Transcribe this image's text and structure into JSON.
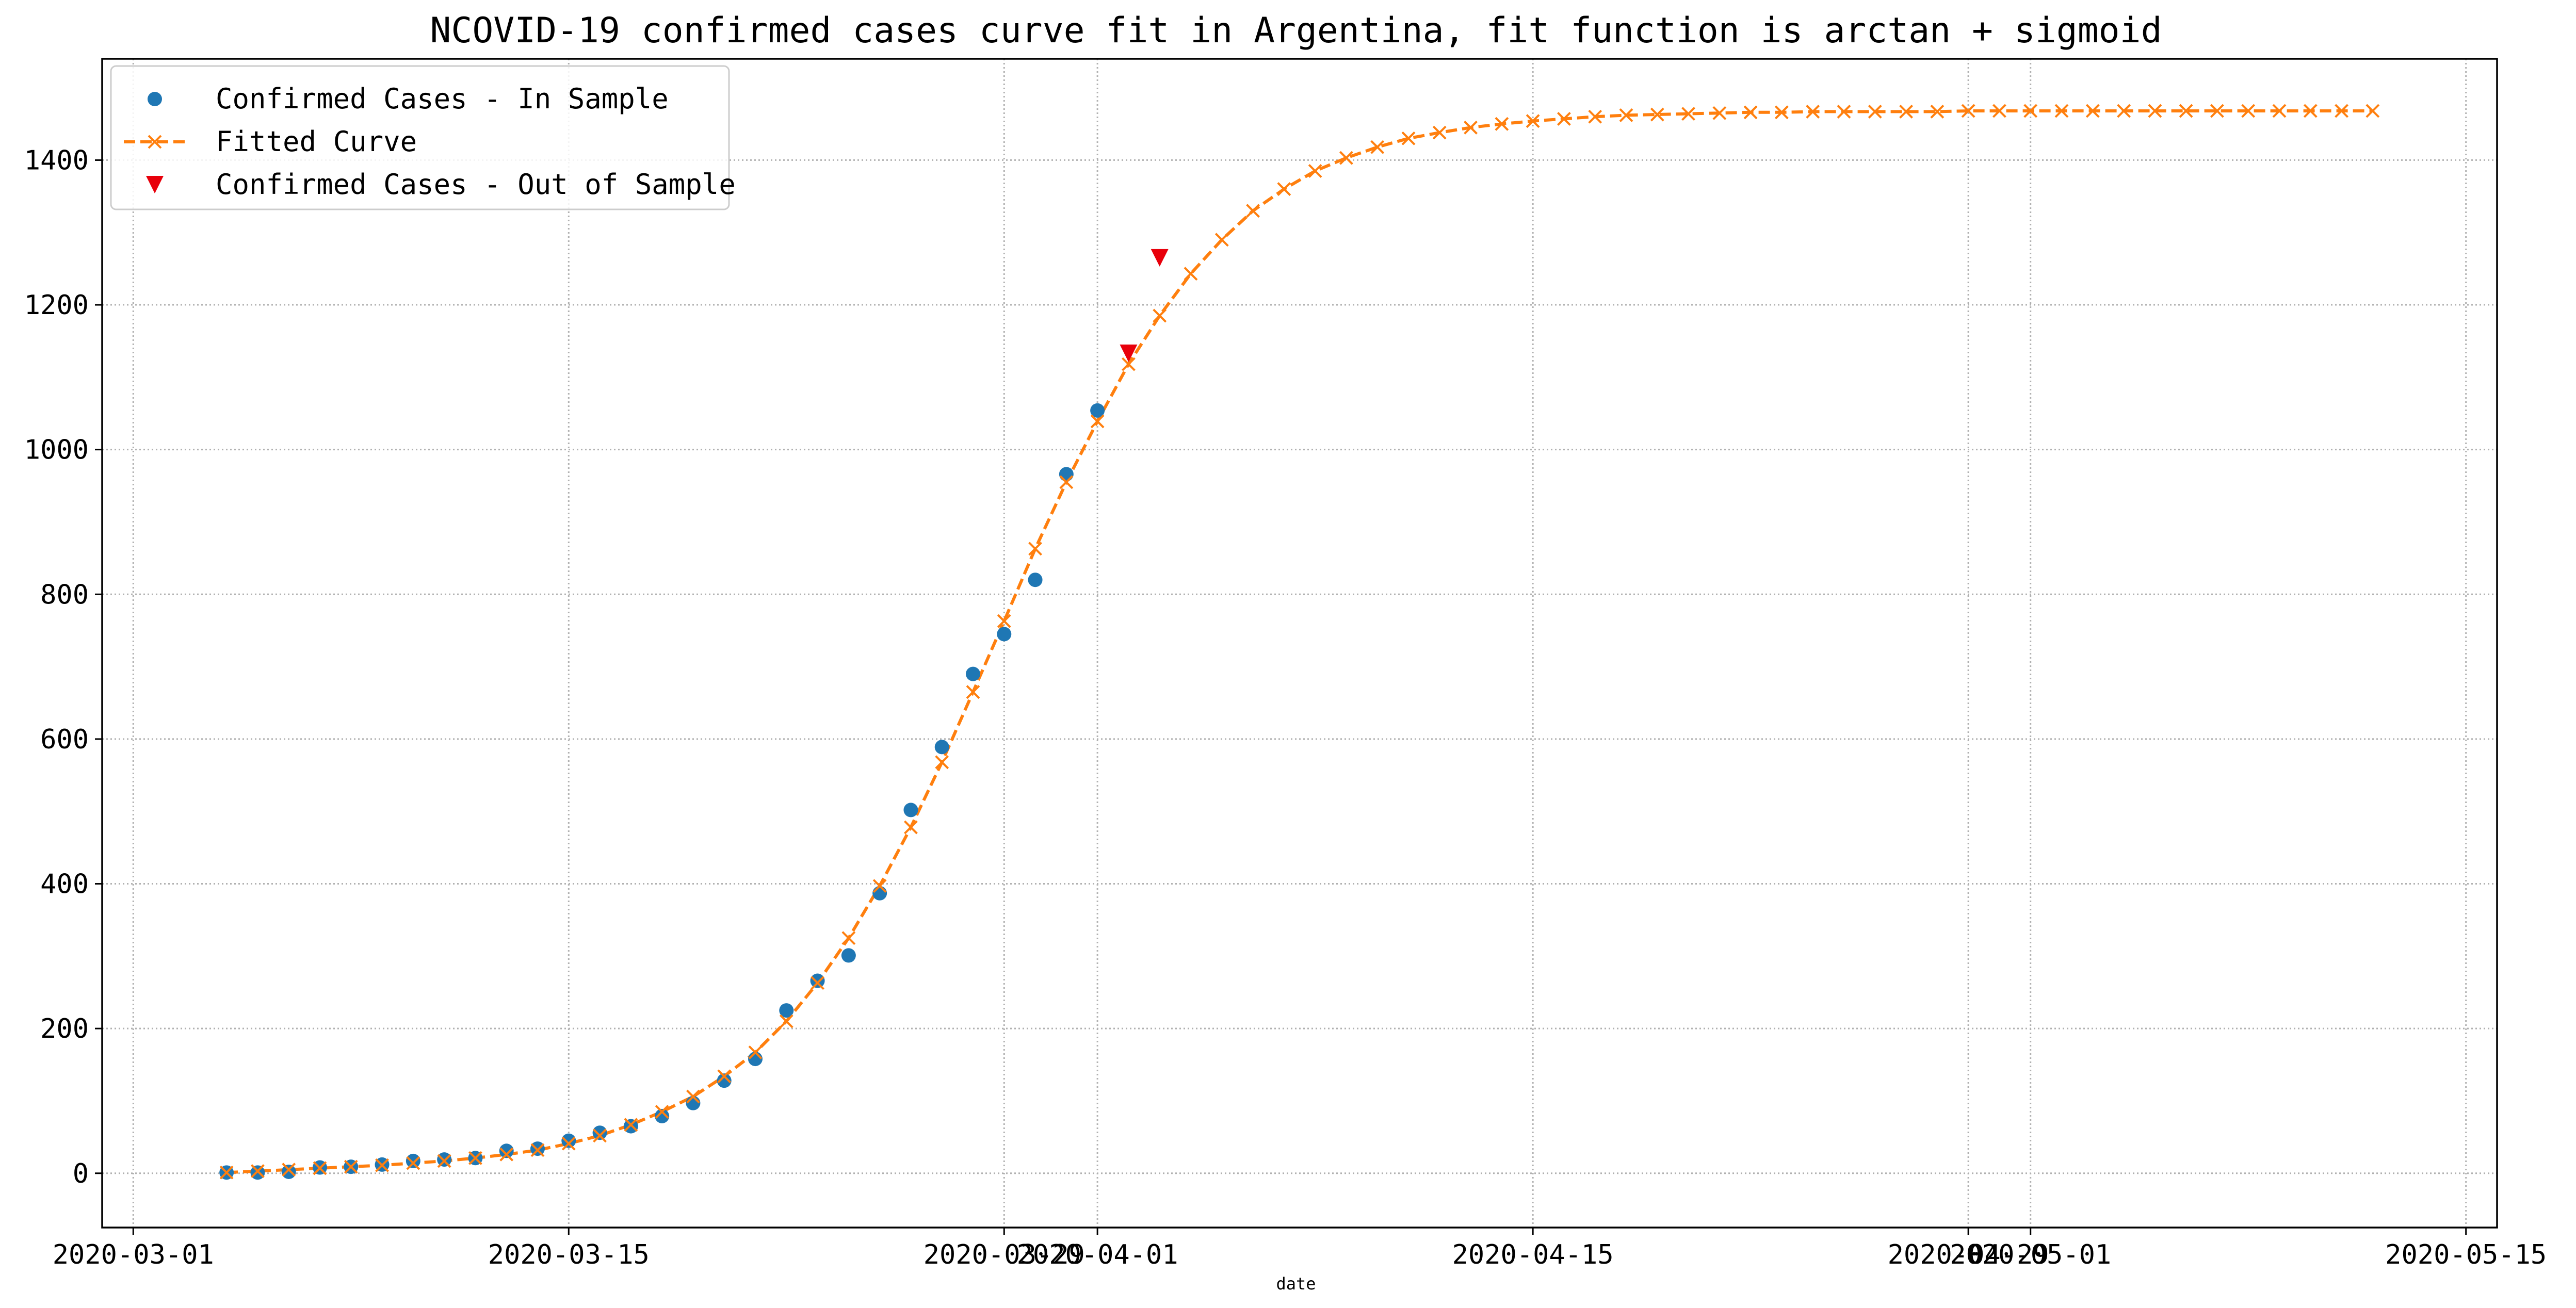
{
  "chart_data": {
    "type": "line",
    "title": "NCOVID-19 confirmed cases curve fit in Argentina, fit function is arctan + sigmoid",
    "xlabel": "date",
    "ylabel": "",
    "x_axis": "date",
    "xlim": [
      "2020-02-29",
      "2020-05-16"
    ],
    "ylim": [
      -75,
      1540
    ],
    "grid": true,
    "legend_position": "top-left",
    "x_ticks": [
      {
        "date": "2020-03-01",
        "label": "2020-03-01"
      },
      {
        "date": "2020-03-15",
        "label": "2020-03-15"
      },
      {
        "date": "2020-03-29",
        "label": "2020-03-29"
      },
      {
        "date": "2020-04-01",
        "label": "2020-04-01"
      },
      {
        "date": "2020-04-15",
        "label": "2020-04-15"
      },
      {
        "date": "2020-04-29",
        "label": "2020-04-29"
      },
      {
        "date": "2020-05-01",
        "label": "2020-05-01"
      },
      {
        "date": "2020-05-15",
        "label": "2020-05-15"
      }
    ],
    "y_ticks": [
      0,
      200,
      400,
      600,
      800,
      1000,
      1200,
      1400
    ],
    "series": [
      {
        "name": "Confirmed Cases - In Sample",
        "style": "markers",
        "marker": "circle",
        "color": "#1f77b4",
        "start_date": "2020-03-04",
        "values": [
          1,
          1,
          2,
          8,
          9,
          12,
          17,
          19,
          21,
          31,
          34,
          45,
          56,
          65,
          79,
          97,
          128,
          158,
          225,
          266,
          301,
          387,
          502,
          589,
          690,
          745,
          820,
          966,
          1054
        ]
      },
      {
        "name": "Fitted Curve",
        "style": "dashed-line",
        "marker": "x",
        "color": "#ff7f0e",
        "start_date": "2020-03-04",
        "values": [
          1,
          3,
          5,
          7,
          9,
          11,
          14,
          17,
          21,
          26,
          32,
          41,
          52,
          67,
          85,
          106,
          134,
          167,
          210,
          263,
          325,
          397,
          478,
          568,
          665,
          763,
          863,
          955,
          1039,
          1118,
          1185,
          1243,
          1290,
          1330,
          1360,
          1385,
          1403,
          1418,
          1430,
          1438,
          1445,
          1450,
          1454,
          1457,
          1460,
          1462,
          1463,
          1464,
          1465,
          1466,
          1466,
          1467,
          1467,
          1467,
          1467,
          1467,
          1468,
          1468,
          1468,
          1468,
          1468,
          1468,
          1468,
          1468,
          1468,
          1468,
          1468,
          1468,
          1468,
          1468
        ]
      },
      {
        "name": "Confirmed Cases - Out of Sample",
        "style": "markers",
        "marker": "triangle-down",
        "color": "#e8000b",
        "start_date": "2020-04-02",
        "values": [
          1133,
          1265
        ]
      }
    ]
  }
}
